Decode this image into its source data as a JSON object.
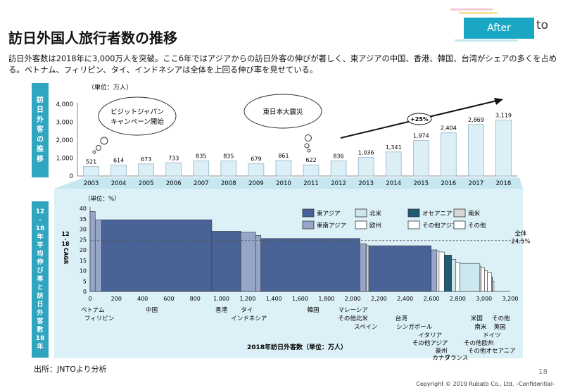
{
  "header": {
    "title": "訪日外国人旅行者数の推移",
    "badge": "After",
    "badge_tail": "to",
    "deco_colors": [
      "#f4c9d4",
      "#f7e3a0",
      "#c7e7ef"
    ]
  },
  "lead": "訪日外客数は2018年に3,000万人を突破。ここ6年ではアジアからの訪日外客の伸びが著しく、東アジアの中国、香港、韓国、台湾がシェアの多くを占める。ベトナム、フィリピン、タイ、インドネシアは全体を上回る伸び率を見せている。",
  "top_side_label": [
    "訪",
    "日",
    "外",
    "客",
    "の",
    "推",
    "移"
  ],
  "bottom_side_label": [
    "12",
    "-",
    "18",
    "年",
    "平",
    "均",
    "伸",
    "び",
    "率",
    "と",
    "訪",
    "日",
    "外",
    "客",
    "数",
    "18",
    "年"
  ],
  "source": "出所：JNTOより分析",
  "page_number": "18",
  "copyright": "Copyright © 2019 Rubato Co., Ltd. –Confidential-",
  "colors": {
    "accent": "#2fa5bf",
    "bar_top": "#dceff6",
    "east_asia": "#4a6396",
    "southeast_asia": "#96a5c8",
    "north_america": "#cde7ef",
    "europe": "#ffffff",
    "oceania": "#1f5b73",
    "other_asia": "#ffffff",
    "south_america": "#d8d8d8",
    "other": "#ffffff"
  },
  "chart_data": [
    {
      "type": "bar",
      "unit_label": "（単位：万人）",
      "categories": [
        "2003",
        "2004",
        "2005",
        "2006",
        "2007",
        "2008",
        "2009",
        "2010",
        "2011",
        "2012",
        "2013",
        "2014",
        "2015",
        "2016",
        "2017",
        "2018"
      ],
      "values": [
        521,
        614,
        673,
        733,
        835,
        835,
        679,
        861,
        622,
        836,
        1036,
        1341,
        1974,
        2404,
        2869,
        3119
      ],
      "value_labels": [
        "521",
        "614",
        "673",
        "733",
        "835",
        "835",
        "679",
        "861",
        "622",
        "836",
        "1,036",
        "1,341",
        "1,974",
        "2,404",
        "2,869",
        "3,119"
      ],
      "y_ticks": [
        "0",
        "1,000",
        "2,000",
        "3,000",
        "4,000"
      ],
      "ylim": [
        0,
        4000
      ],
      "grid": false,
      "annotations": {
        "callout_1": [
          "ビジットジャパン",
          "キャンペーン開始"
        ],
        "callout_2": "東日本大震災",
        "growth": "+25%"
      }
    },
    {
      "type": "bar",
      "subtype": "marimekko",
      "unit_label": "（単位：%）",
      "y_axis_label": [
        "12",
        "-",
        "18",
        "CAGR"
      ],
      "xlabel": "2018年訪日外客数（単位：万人）",
      "xlim": [
        0,
        3200
      ],
      "ylim": [
        0,
        40
      ],
      "x_ticks": [
        "0",
        "200",
        "400",
        "600",
        "800",
        "1,000",
        "1,200",
        "1,400",
        "1,600",
        "1,800",
        "2,000",
        "2,200",
        "2,400",
        "2,600",
        "2,800",
        "3,000",
        "3,200"
      ],
      "y_ticks": [
        "0",
        "5",
        "10",
        "15",
        "20",
        "25",
        "30",
        "35",
        "40"
      ],
      "reference_line": {
        "label": "全体",
        "value_label": "24.5%",
        "value": 24.5
      },
      "legend": {
        "position": "top-right",
        "items": [
          {
            "name": "東アジア",
            "key": "east_asia"
          },
          {
            "name": "北米",
            "key": "north_america"
          },
          {
            "name": "オセアニア",
            "key": "oceania"
          },
          {
            "name": "南米",
            "key": "south_america"
          },
          {
            "name": "東南アジア",
            "key": "southeast_asia"
          },
          {
            "name": "欧州",
            "key": "europe"
          },
          {
            "name": "その他アジア",
            "key": "other_asia"
          },
          {
            "name": "その他",
            "key": "other"
          }
        ]
      },
      "segments": [
        {
          "name": "ベトナム",
          "width": 39,
          "cagr": 38.5,
          "group": "southeast_asia"
        },
        {
          "name": "フィリピン",
          "width": 50,
          "cagr": 34.5,
          "group": "southeast_asia"
        },
        {
          "name": "中国",
          "width": 838,
          "cagr": 34.5,
          "group": "east_asia"
        },
        {
          "name": "香港",
          "width": 221,
          "cagr": 29,
          "group": "east_asia"
        },
        {
          "name": "タイ",
          "width": 113,
          "cagr": 28.5,
          "group": "southeast_asia"
        },
        {
          "name": "インドネシア",
          "width": 40,
          "cagr": 27,
          "group": "southeast_asia"
        },
        {
          "name": "韓国",
          "width": 754,
          "cagr": 25.5,
          "group": "east_asia"
        },
        {
          "name": "マレーシア",
          "width": 47,
          "cagr": 23,
          "group": "southeast_asia"
        },
        {
          "name": "その他北米",
          "width": 8,
          "cagr": 22.5,
          "group": "north_america"
        },
        {
          "name": "スペイン",
          "width": 12,
          "cagr": 22,
          "group": "europe"
        },
        {
          "name": "台湾",
          "width": 476,
          "cagr": 22,
          "group": "east_asia"
        },
        {
          "name": "シンガポール",
          "width": 44,
          "cagr": 20,
          "group": "southeast_asia"
        },
        {
          "name": "イタリア",
          "width": 16,
          "cagr": 19.5,
          "group": "europe"
        },
        {
          "name": "その他アジア",
          "width": 40,
          "cagr": 19,
          "group": "other_asia"
        },
        {
          "name": "豪州",
          "width": 55,
          "cagr": 17.5,
          "group": "oceania"
        },
        {
          "name": "カナダ",
          "width": 33,
          "cagr": 15.5,
          "group": "north_america"
        },
        {
          "name": "フランス",
          "width": 30,
          "cagr": 14,
          "group": "europe"
        },
        {
          "name": "米国",
          "width": 153,
          "cagr": 13.5,
          "group": "north_america"
        },
        {
          "name": "南米",
          "width": 10,
          "cagr": 12,
          "group": "south_america"
        },
        {
          "name": "その他欧州",
          "width": 25,
          "cagr": 11.5,
          "group": "europe"
        },
        {
          "name": "ドイツ",
          "width": 22,
          "cagr": 10,
          "group": "europe"
        },
        {
          "name": "英国",
          "width": 33,
          "cagr": 9,
          "group": "europe"
        },
        {
          "name": "その他オセアニア",
          "width": 5,
          "cagr": 7,
          "group": "oceania"
        },
        {
          "name": "その他",
          "width": 12,
          "cagr": 5,
          "group": "other"
        }
      ],
      "category_labels": [
        {
          "text": "ベトナム",
          "x": 20,
          "row": 0
        },
        {
          "text": "フィリピン",
          "x": 70,
          "row": 1
        },
        {
          "text": "中国",
          "x": 470,
          "row": 0
        },
        {
          "text": "香港",
          "x": 1000,
          "row": 0
        },
        {
          "text": "タイ",
          "x": 1195,
          "row": 0
        },
        {
          "text": "インドネシア",
          "x": 1210,
          "row": 1
        },
        {
          "text": "韓国",
          "x": 1700,
          "row": 0
        },
        {
          "text": "マレーシア",
          "x": 2003,
          "row": 0
        },
        {
          "text": "その他北米",
          "x": 2003,
          "row": 1
        },
        {
          "text": "スペイン",
          "x": 2100,
          "row": 2
        },
        {
          "text": "台湾",
          "x": 2370,
          "row": 1
        },
        {
          "text": "シンガポール",
          "x": 2470,
          "row": 2
        },
        {
          "text": "イタリア",
          "x": 2590,
          "row": 3
        },
        {
          "text": "その他アジア",
          "x": 2590,
          "row": 4
        },
        {
          "text": "豪州",
          "x": 2675,
          "row": 5
        },
        {
          "text": "カナダ",
          "x": 2675,
          "row": 6
        },
        {
          "text": "フランス",
          "x": 2790,
          "row": 6
        },
        {
          "text": "米国",
          "x": 2945,
          "row": 1
        },
        {
          "text": "南米",
          "x": 2975,
          "row": 2
        },
        {
          "text": "ドイツ",
          "x": 3060,
          "row": 3
        },
        {
          "text": "その他欧州",
          "x": 2960,
          "row": 4
        },
        {
          "text": "英国",
          "x": 3120,
          "row": 2
        },
        {
          "text": "その他",
          "x": 3130,
          "row": 1
        },
        {
          "text": "その他オセアニア",
          "x": 3060,
          "row": 5
        }
      ]
    }
  ]
}
